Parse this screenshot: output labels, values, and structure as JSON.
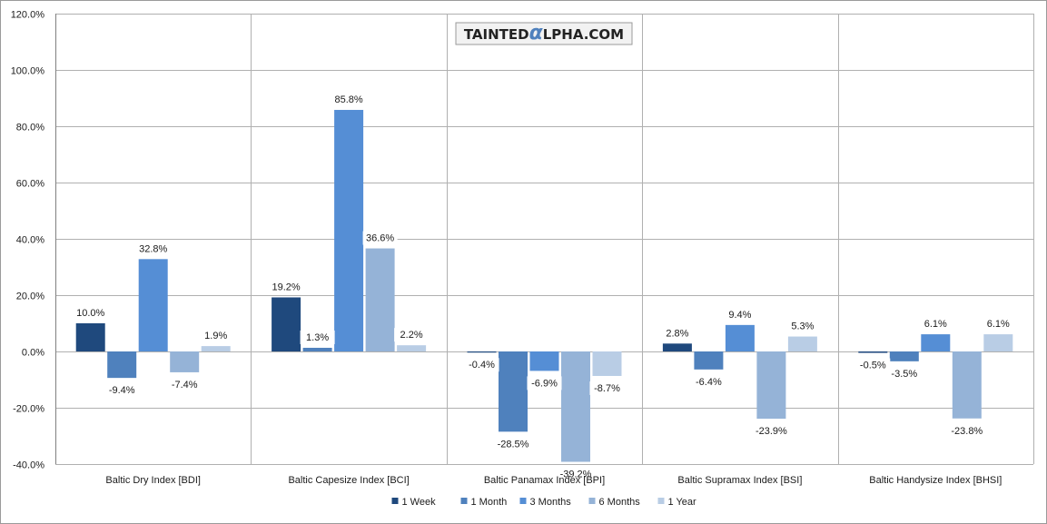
{
  "watermark": {
    "prefix": "TAINTED",
    "alpha": "α",
    "suffix": "LPHA.COM"
  },
  "chart_data": {
    "type": "bar",
    "categories": [
      "Baltic Dry Index [BDI]",
      "Baltic Capesize Index [BCI]",
      "Baltic Panamax Index [BPI]",
      "Baltic Supramax Index [BSI]",
      "Baltic Handysize Index [BHSI]"
    ],
    "series": [
      {
        "name": "1 Week",
        "color": "#1f497d",
        "values": [
          10.0,
          19.2,
          -0.4,
          2.8,
          -0.5
        ]
      },
      {
        "name": "1 Month",
        "color": "#4f81bd",
        "values": [
          -9.4,
          1.3,
          -28.5,
          -6.4,
          -3.5
        ]
      },
      {
        "name": "3 Months",
        "color": "#558ed5",
        "values": [
          32.8,
          85.8,
          -6.9,
          9.4,
          6.1
        ]
      },
      {
        "name": "6 Months",
        "color": "#95b3d7",
        "values": [
          -7.4,
          36.6,
          -39.2,
          -23.9,
          -23.8
        ]
      },
      {
        "name": "1 Year",
        "color": "#b9cde5",
        "values": [
          1.9,
          2.2,
          -8.7,
          5.3,
          6.1
        ]
      }
    ],
    "data_labels": [
      [
        "10.0%",
        "19.2%",
        "-0.4%",
        "2.8%",
        "-0.5%"
      ],
      [
        "-9.4%",
        "1.3%",
        "-28.5%",
        "-6.4%",
        "-3.5%"
      ],
      [
        "32.8%",
        "85.8%",
        "-6.9%",
        "9.4%",
        "6.1%"
      ],
      [
        "-7.4%",
        "36.6%",
        "-39.2%",
        "-23.9%",
        "-23.8%"
      ],
      [
        "1.9%",
        "2.2%",
        "-8.7%",
        "5.3%",
        "6.1%"
      ]
    ],
    "ylim": [
      -40,
      120
    ],
    "yticks": [
      -40,
      -20,
      0,
      20,
      40,
      60,
      80,
      100,
      120
    ],
    "ytick_labels": [
      "-40.0%",
      "-20.0%",
      "0.0%",
      "20.0%",
      "40.0%",
      "60.0%",
      "80.0%",
      "100.0%",
      "120.0%"
    ],
    "grid": true,
    "legend_position": "bottom",
    "colors": {
      "grid": "#b0b0b0",
      "axis": "#808080",
      "frame": "#9a9a9a"
    }
  }
}
